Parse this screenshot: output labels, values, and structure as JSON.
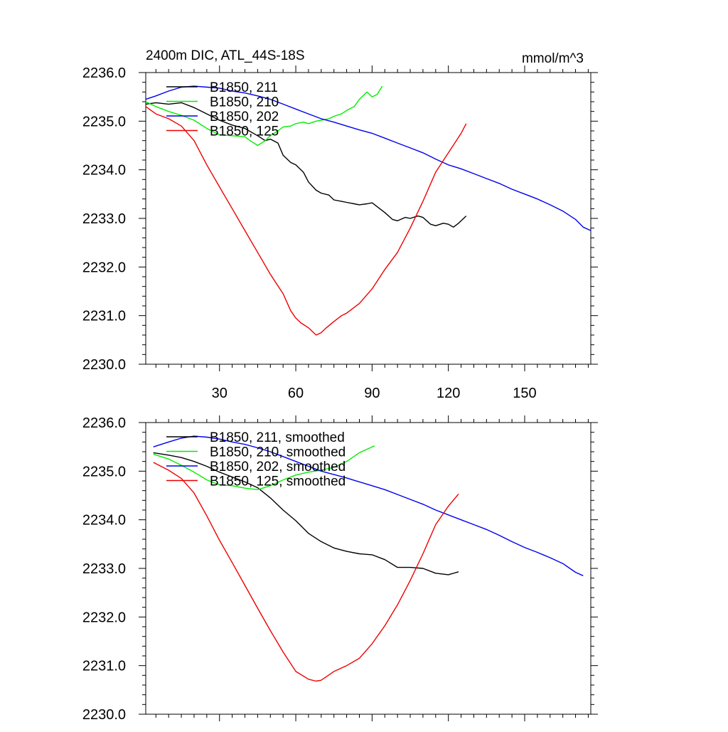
{
  "chart_data": [
    {
      "type": "line",
      "title": "2400m DIC, ATL_44S-18S",
      "units": "mmol/m^3",
      "xlabel": "",
      "ylabel": "",
      "xlim": [
        1,
        176
      ],
      "ylim": [
        2230.0,
        2236.0
      ],
      "xticks": [
        30,
        60,
        90,
        120,
        150
      ],
      "xtick_labels": [
        "30",
        "60",
        "90",
        "120",
        "150"
      ],
      "yticks": [
        2230,
        2231,
        2232,
        2233,
        2234,
        2235,
        2236
      ],
      "ytick_labels": [
        "2230.0",
        "2231.0",
        "2232.0",
        "2233.0",
        "2234.0",
        "2235.0",
        "2236.0"
      ],
      "legend_position": "top-left",
      "grid": false,
      "series": [
        {
          "name": "B1850, 211",
          "color": "#000000",
          "x": [
            1,
            5,
            10,
            15,
            20,
            25,
            30,
            35,
            40,
            45,
            48,
            50,
            53,
            55,
            58,
            60,
            63,
            65,
            68,
            70,
            73,
            75,
            78,
            80,
            83,
            85,
            88,
            90,
            93,
            95,
            98,
            100,
            103,
            105,
            108,
            110,
            113,
            115,
            118,
            120,
            122,
            124,
            127
          ],
          "values": [
            2235.35,
            2235.38,
            2235.35,
            2235.38,
            2235.28,
            2235.15,
            2235.02,
            2234.92,
            2234.85,
            2234.7,
            2234.6,
            2234.63,
            2234.55,
            2234.3,
            2234.15,
            2234.1,
            2233.95,
            2233.75,
            2233.58,
            2233.52,
            2233.48,
            2233.38,
            2233.35,
            2233.33,
            2233.3,
            2233.28,
            2233.3,
            2233.32,
            2233.2,
            2233.12,
            2232.98,
            2232.95,
            2233.02,
            2233.0,
            2233.05,
            2233.02,
            2232.88,
            2232.85,
            2232.9,
            2232.88,
            2232.82,
            2232.9,
            2233.05
          ]
        },
        {
          "name": "B1850, 210",
          "color": "#00ee00",
          "x": [
            1,
            5,
            10,
            15,
            20,
            25,
            30,
            35,
            40,
            42,
            45,
            48,
            50,
            53,
            55,
            58,
            60,
            63,
            65,
            68,
            70,
            73,
            75,
            78,
            80,
            83,
            85,
            88,
            90,
            92,
            94
          ],
          "values": [
            2235.4,
            2235.3,
            2235.2,
            2235.12,
            2235.02,
            2234.85,
            2234.72,
            2234.7,
            2234.68,
            2234.6,
            2234.5,
            2234.6,
            2234.7,
            2234.8,
            2234.88,
            2234.9,
            2234.95,
            2234.98,
            2234.95,
            2235.0,
            2235.02,
            2235.05,
            2235.1,
            2235.15,
            2235.22,
            2235.3,
            2235.45,
            2235.6,
            2235.5,
            2235.55,
            2235.72
          ]
        },
        {
          "name": "B1850, 202",
          "color": "#0000ee",
          "x": [
            1,
            5,
            10,
            15,
            20,
            25,
            30,
            35,
            40,
            45,
            50,
            55,
            60,
            65,
            70,
            75,
            80,
            85,
            90,
            95,
            100,
            105,
            110,
            115,
            120,
            125,
            130,
            135,
            140,
            145,
            150,
            155,
            160,
            165,
            170,
            173,
            176
          ],
          "values": [
            2235.45,
            2235.52,
            2235.62,
            2235.7,
            2235.72,
            2235.7,
            2235.68,
            2235.62,
            2235.58,
            2235.52,
            2235.45,
            2235.35,
            2235.25,
            2235.15,
            2235.05,
            2234.98,
            2234.9,
            2234.82,
            2234.75,
            2234.65,
            2234.55,
            2234.45,
            2234.35,
            2234.22,
            2234.1,
            2234.02,
            2233.92,
            2233.82,
            2233.72,
            2233.6,
            2233.5,
            2233.4,
            2233.28,
            2233.15,
            2232.98,
            2232.82,
            2232.75
          ]
        },
        {
          "name": "B1850, 125",
          "color": "#ee0000",
          "x": [
            1,
            5,
            10,
            15,
            20,
            25,
            30,
            35,
            40,
            45,
            50,
            55,
            58,
            60,
            62,
            65,
            68,
            70,
            72,
            75,
            78,
            80,
            85,
            90,
            95,
            100,
            105,
            110,
            115,
            120,
            125,
            127
          ],
          "values": [
            2235.3,
            2235.15,
            2235.05,
            2234.9,
            2234.6,
            2234.1,
            2233.65,
            2233.2,
            2232.75,
            2232.3,
            2231.85,
            2231.45,
            2231.1,
            2230.95,
            2230.85,
            2230.75,
            2230.6,
            2230.65,
            2230.75,
            2230.88,
            2231.0,
            2231.05,
            2231.25,
            2231.55,
            2231.95,
            2232.3,
            2232.8,
            2233.35,
            2233.95,
            2234.35,
            2234.75,
            2234.95
          ]
        }
      ]
    },
    {
      "type": "line",
      "title": "",
      "xlabel": "",
      "ylabel": "",
      "xlim": [
        1,
        176
      ],
      "ylim": [
        2230.0,
        2236.0
      ],
      "xticks": [
        30,
        60,
        90,
        120,
        150
      ],
      "yticks": [
        2230,
        2231,
        2232,
        2233,
        2234,
        2235,
        2236
      ],
      "ytick_labels": [
        "2230.0",
        "2231.0",
        "2232.0",
        "2233.0",
        "2234.0",
        "2235.0",
        "2236.0"
      ],
      "legend_position": "top-left",
      "grid": false,
      "series": [
        {
          "name": "B1850, 211, smoothed",
          "color": "#000000",
          "x": [
            4,
            10,
            15,
            20,
            25,
            30,
            35,
            40,
            45,
            50,
            55,
            60,
            65,
            70,
            75,
            80,
            85,
            90,
            95,
            100,
            105,
            110,
            115,
            120,
            124
          ],
          "values": [
            2235.38,
            2235.33,
            2235.28,
            2235.2,
            2235.1,
            2234.98,
            2234.88,
            2234.78,
            2234.66,
            2234.45,
            2234.2,
            2233.98,
            2233.72,
            2233.55,
            2233.42,
            2233.35,
            2233.3,
            2233.28,
            2233.18,
            2233.02,
            2233.02,
            2233.0,
            2232.9,
            2232.87,
            2232.93
          ]
        },
        {
          "name": "B1850, 210, smoothed",
          "color": "#00ee00",
          "x": [
            4,
            10,
            15,
            20,
            25,
            30,
            35,
            40,
            45,
            50,
            55,
            60,
            65,
            70,
            75,
            80,
            85,
            90,
            91
          ],
          "values": [
            2235.35,
            2235.25,
            2235.12,
            2234.98,
            2234.82,
            2234.72,
            2234.7,
            2234.65,
            2234.62,
            2234.7,
            2234.82,
            2234.92,
            2234.98,
            2235.02,
            2235.08,
            2235.2,
            2235.38,
            2235.5,
            2235.52
          ]
        },
        {
          "name": "B1850, 202, smoothed",
          "color": "#0000ee",
          "x": [
            4,
            10,
            15,
            20,
            25,
            30,
            35,
            40,
            45,
            50,
            55,
            60,
            65,
            70,
            75,
            80,
            85,
            90,
            95,
            100,
            105,
            110,
            115,
            120,
            125,
            130,
            135,
            140,
            145,
            150,
            155,
            160,
            165,
            170,
            173
          ],
          "values": [
            2235.5,
            2235.6,
            2235.68,
            2235.72,
            2235.7,
            2235.66,
            2235.6,
            2235.55,
            2235.48,
            2235.4,
            2235.3,
            2235.2,
            2235.1,
            2235.0,
            2234.93,
            2234.86,
            2234.78,
            2234.7,
            2234.62,
            2234.52,
            2234.42,
            2234.32,
            2234.2,
            2234.1,
            2234.0,
            2233.9,
            2233.8,
            2233.68,
            2233.55,
            2233.43,
            2233.33,
            2233.22,
            2233.1,
            2232.92,
            2232.85
          ]
        },
        {
          "name": "B1850, 125, smoothed",
          "color": "#ee0000",
          "x": [
            4,
            10,
            15,
            20,
            25,
            30,
            35,
            40,
            45,
            50,
            55,
            60,
            65,
            68,
            70,
            75,
            80,
            85,
            90,
            95,
            100,
            105,
            110,
            115,
            120,
            124
          ],
          "values": [
            2235.18,
            2235.02,
            2234.85,
            2234.55,
            2234.08,
            2233.58,
            2233.12,
            2232.65,
            2232.18,
            2231.72,
            2231.28,
            2230.88,
            2230.72,
            2230.68,
            2230.7,
            2230.88,
            2231.0,
            2231.15,
            2231.45,
            2231.82,
            2232.25,
            2232.75,
            2233.3,
            2233.9,
            2234.28,
            2234.53
          ]
        }
      ]
    }
  ]
}
